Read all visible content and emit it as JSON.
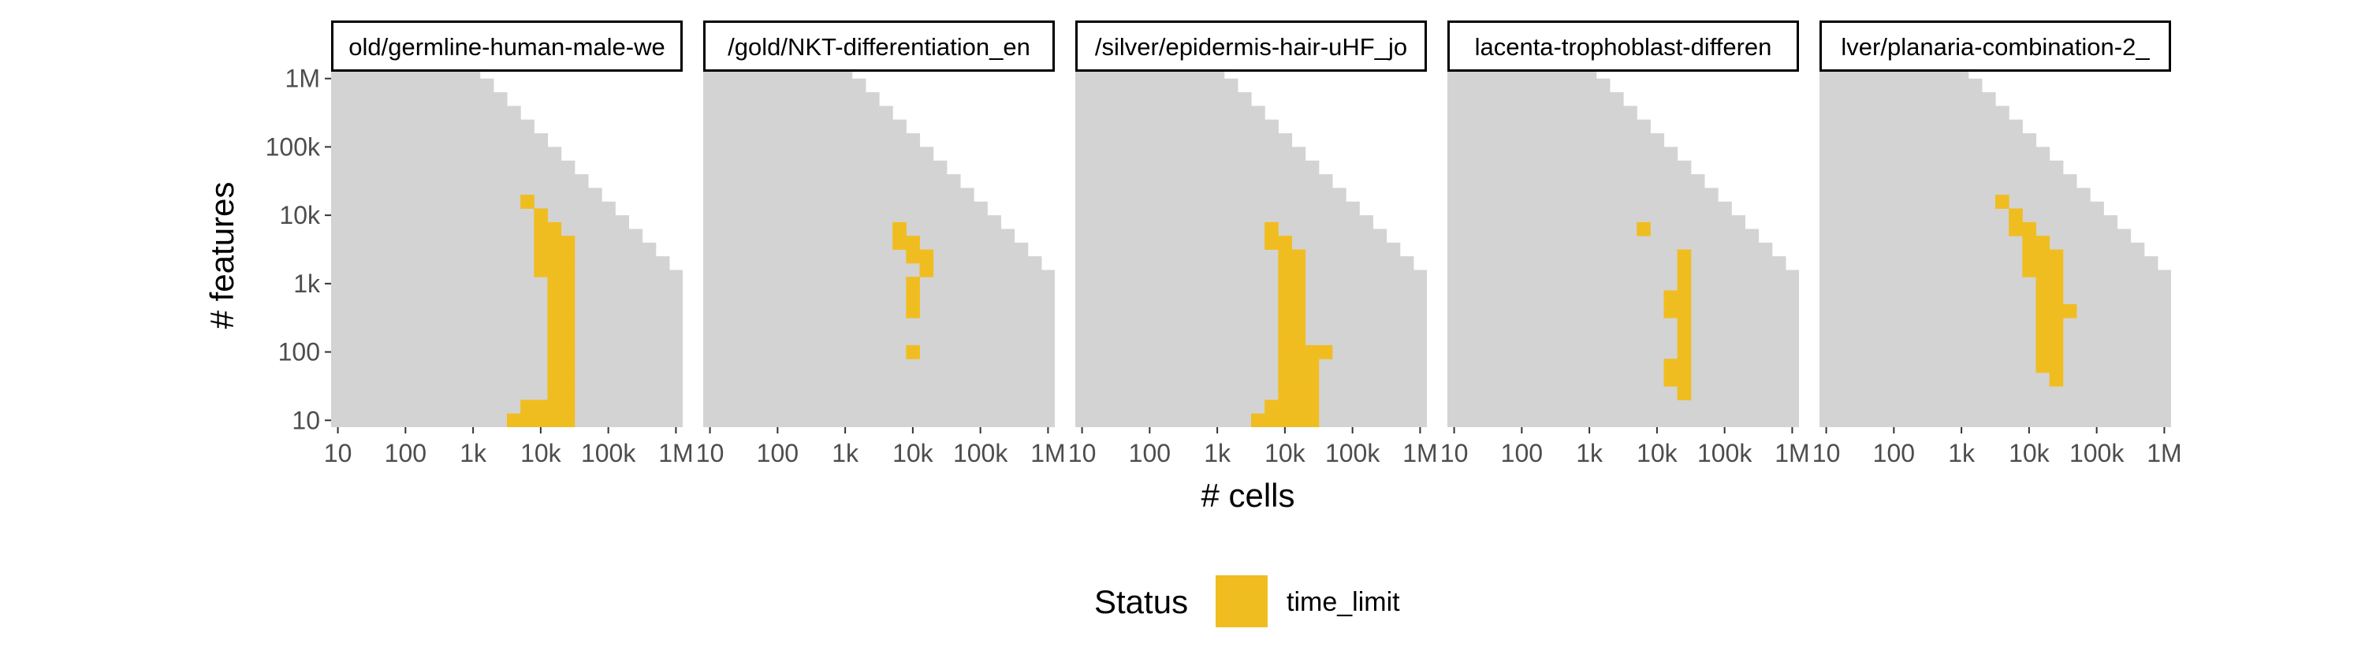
{
  "colors": {
    "background_region": "#d3d3d3",
    "time_limit": "#f0bd21",
    "strip_border": "#000000",
    "axis_text": "#4d4d4d",
    "title_text": "#000000"
  },
  "chart_data": {
    "type": "heatmap",
    "facet_layout": "1 row x 5 columns",
    "xlabel": "# cells",
    "ylabel": "# features",
    "x_scale": "log10",
    "y_scale": "log10",
    "xlim": [
      10,
      1000000
    ],
    "ylim": [
      10,
      1000000
    ],
    "x_ticks": [
      "10",
      "100",
      "1k",
      "10k",
      "100k",
      "1M"
    ],
    "y_ticks": [
      "10",
      "100",
      "1k",
      "10k",
      "100k",
      "1M"
    ],
    "grid": false,
    "legend": {
      "title": "Status",
      "position": "bottom",
      "entries": [
        {
          "label": "time_limit",
          "color": "#f0bd21"
        }
      ]
    },
    "cell_bins_log10": "each cell spans 0.2 log10 units in x and y",
    "panels": [
      {
        "title": "old/germline-human-male-we",
        "boundary_row_top_log10_features": [
          6.2,
          6.2,
          6.2,
          6.2,
          6.2,
          6.2,
          6.2,
          6.2,
          6.2,
          6.2,
          6.2,
          6.0,
          5.8,
          5.6,
          5.4,
          5.2,
          5.0,
          4.8,
          4.6,
          4.4,
          4.2,
          4.0,
          3.8,
          3.6,
          3.4,
          3.2,
          3.0,
          2.8,
          2.6,
          2.4,
          2.2
        ],
        "time_limit_cells_log10": [
          [
            3.6,
            1.0
          ],
          [
            3.8,
            1.0
          ],
          [
            3.8,
            1.2
          ],
          [
            3.8,
            4.2
          ],
          [
            4.0,
            1.0
          ],
          [
            4.0,
            1.2
          ],
          [
            4.0,
            3.2
          ],
          [
            4.0,
            3.4
          ],
          [
            4.0,
            3.6
          ],
          [
            4.0,
            3.8
          ],
          [
            4.0,
            4.0
          ],
          [
            4.2,
            0.8
          ],
          [
            4.2,
            1.0
          ],
          [
            4.2,
            1.2
          ],
          [
            4.2,
            1.4
          ],
          [
            4.2,
            1.6
          ],
          [
            4.2,
            1.8
          ],
          [
            4.2,
            2.0
          ],
          [
            4.2,
            2.2
          ],
          [
            4.2,
            2.4
          ],
          [
            4.2,
            2.6
          ],
          [
            4.2,
            2.8
          ],
          [
            4.2,
            3.0
          ],
          [
            4.2,
            3.2
          ],
          [
            4.2,
            3.4
          ],
          [
            4.2,
            3.6
          ],
          [
            4.2,
            3.8
          ],
          [
            4.4,
            0.8
          ],
          [
            4.4,
            1.0
          ],
          [
            4.4,
            1.2
          ],
          [
            4.4,
            1.4
          ],
          [
            4.4,
            1.6
          ],
          [
            4.4,
            1.8
          ],
          [
            4.4,
            2.0
          ],
          [
            4.4,
            2.2
          ],
          [
            4.4,
            2.4
          ],
          [
            4.4,
            2.6
          ],
          [
            4.4,
            2.8
          ],
          [
            4.4,
            3.0
          ],
          [
            4.4,
            3.2
          ],
          [
            4.4,
            3.4
          ],
          [
            4.4,
            3.6
          ]
        ]
      },
      {
        "title": "/gold/NKT-differentiation_en",
        "boundary_row_top_log10_features": [
          6.2,
          6.2,
          6.2,
          6.2,
          6.2,
          6.2,
          6.2,
          6.2,
          6.2,
          6.2,
          6.2,
          6.0,
          5.8,
          5.6,
          5.4,
          5.2,
          5.0,
          4.8,
          4.6,
          4.4,
          4.2,
          4.0,
          3.8,
          3.6,
          3.4,
          3.2,
          3.0,
          2.8,
          2.6,
          2.4,
          2.2
        ],
        "time_limit_cells_log10": [
          [
            3.8,
            3.6
          ],
          [
            3.8,
            3.8
          ],
          [
            4.0,
            3.4
          ],
          [
            4.0,
            3.6
          ],
          [
            4.2,
            3.2
          ],
          [
            4.2,
            3.4
          ],
          [
            4.0,
            3.0
          ],
          [
            4.0,
            2.8
          ],
          [
            4.0,
            2.6
          ],
          [
            4.0,
            2.0
          ],
          [
            4.0,
            0.8
          ]
        ]
      },
      {
        "title": "/silver/epidermis-hair-uHF_jo",
        "boundary_row_top_log10_features": [
          6.2,
          6.2,
          6.2,
          6.2,
          6.2,
          6.2,
          6.2,
          6.2,
          6.2,
          6.2,
          6.2,
          6.0,
          5.8,
          5.6,
          5.4,
          5.2,
          5.0,
          4.8,
          4.6,
          4.4,
          4.2,
          4.0,
          3.8,
          3.6,
          3.4,
          3.2,
          3.0,
          2.8,
          2.6,
          2.4,
          2.2
        ],
        "time_limit_cells_log10": [
          [
            3.4,
            0.8
          ],
          [
            3.6,
            0.8
          ],
          [
            3.6,
            1.0
          ],
          [
            3.8,
            0.8
          ],
          [
            3.8,
            1.0
          ],
          [
            3.8,
            1.2
          ],
          [
            3.8,
            3.6
          ],
          [
            3.8,
            3.8
          ],
          [
            4.0,
            0.8
          ],
          [
            4.0,
            1.0
          ],
          [
            4.0,
            1.2
          ],
          [
            4.0,
            1.4
          ],
          [
            4.0,
            1.6
          ],
          [
            4.0,
            1.8
          ],
          [
            4.0,
            2.0
          ],
          [
            4.0,
            2.2
          ],
          [
            4.0,
            2.4
          ],
          [
            4.0,
            2.6
          ],
          [
            4.0,
            2.8
          ],
          [
            4.0,
            3.0
          ],
          [
            4.0,
            3.2
          ],
          [
            4.0,
            3.4
          ],
          [
            4.0,
            3.6
          ],
          [
            4.2,
            0.8
          ],
          [
            4.2,
            1.0
          ],
          [
            4.2,
            1.2
          ],
          [
            4.2,
            1.4
          ],
          [
            4.2,
            1.6
          ],
          [
            4.2,
            1.8
          ],
          [
            4.2,
            2.0
          ],
          [
            4.2,
            2.2
          ],
          [
            4.2,
            2.4
          ],
          [
            4.2,
            2.6
          ],
          [
            4.2,
            2.8
          ],
          [
            4.2,
            3.0
          ],
          [
            4.2,
            3.2
          ],
          [
            4.2,
            3.4
          ],
          [
            4.4,
            0.8
          ],
          [
            4.4,
            1.0
          ],
          [
            4.4,
            1.2
          ],
          [
            4.4,
            1.4
          ],
          [
            4.4,
            1.6
          ],
          [
            4.4,
            1.8
          ],
          [
            4.4,
            2.0
          ],
          [
            4.6,
            2.0
          ]
        ]
      },
      {
        "title": "lacenta-trophoblast-differen",
        "boundary_row_top_log10_features": [
          6.2,
          6.2,
          6.2,
          6.2,
          6.2,
          6.2,
          6.2,
          6.2,
          6.2,
          6.2,
          6.2,
          6.0,
          5.8,
          5.6,
          5.4,
          5.2,
          5.0,
          4.8,
          4.6,
          4.4,
          4.2,
          4.0,
          3.8,
          3.6,
          3.4,
          3.2,
          3.0,
          2.8,
          2.6,
          2.4,
          2.2
        ],
        "time_limit_cells_log10": [
          [
            3.8,
            3.8
          ],
          [
            4.4,
            3.4
          ],
          [
            4.4,
            3.2
          ],
          [
            4.4,
            3.0
          ],
          [
            4.4,
            2.8
          ],
          [
            4.4,
            2.6
          ],
          [
            4.4,
            2.4
          ],
          [
            4.4,
            2.2
          ],
          [
            4.4,
            2.0
          ],
          [
            4.4,
            1.8
          ],
          [
            4.4,
            1.6
          ],
          [
            4.4,
            1.4
          ],
          [
            4.2,
            2.6
          ],
          [
            4.2,
            2.8
          ],
          [
            4.2,
            1.8
          ],
          [
            4.2,
            1.6
          ]
        ]
      },
      {
        "title": "lver/planaria-combination-2_",
        "boundary_row_top_log10_features": [
          6.2,
          6.2,
          6.2,
          6.2,
          6.2,
          6.2,
          6.2,
          6.2,
          6.2,
          6.2,
          6.2,
          6.0,
          5.8,
          5.6,
          5.4,
          5.2,
          5.0,
          4.8,
          4.6,
          4.4,
          4.2,
          4.0,
          3.8,
          3.6,
          3.4,
          3.2,
          3.0,
          2.8,
          2.6,
          2.4,
          2.2
        ],
        "time_limit_cells_log10": [
          [
            3.6,
            4.2
          ],
          [
            3.8,
            4.0
          ],
          [
            3.8,
            3.8
          ],
          [
            4.0,
            3.8
          ],
          [
            4.0,
            3.6
          ],
          [
            4.0,
            3.4
          ],
          [
            4.0,
            3.2
          ],
          [
            4.2,
            3.6
          ],
          [
            4.2,
            3.4
          ],
          [
            4.2,
            3.2
          ],
          [
            4.2,
            3.0
          ],
          [
            4.2,
            2.8
          ],
          [
            4.2,
            2.6
          ],
          [
            4.2,
            2.4
          ],
          [
            4.2,
            2.2
          ],
          [
            4.2,
            2.0
          ],
          [
            4.2,
            1.8
          ],
          [
            4.4,
            3.4
          ],
          [
            4.4,
            3.2
          ],
          [
            4.4,
            3.0
          ],
          [
            4.4,
            2.8
          ],
          [
            4.4,
            2.6
          ],
          [
            4.4,
            2.4
          ],
          [
            4.4,
            2.2
          ],
          [
            4.4,
            2.0
          ],
          [
            4.4,
            1.8
          ],
          [
            4.4,
            1.6
          ],
          [
            4.6,
            2.6
          ],
          [
            4.2,
            0.8
          ]
        ]
      }
    ]
  }
}
